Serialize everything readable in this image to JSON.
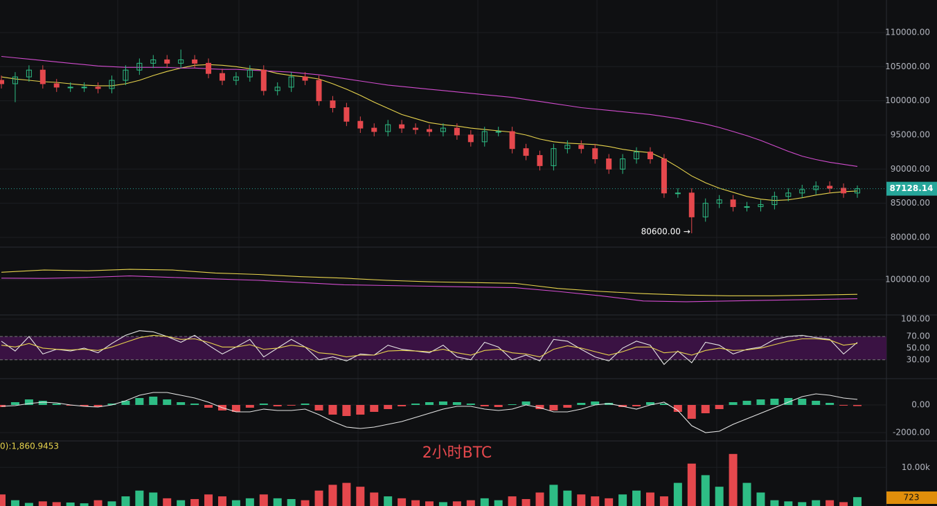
{
  "chart_data": [
    {
      "type": "candlestick",
      "up_color": "#2ebd85",
      "down_color": "#e5484d",
      "ylim": [
        78780,
        114760
      ],
      "yticks": [
        {
          "value": 80000,
          "label": "80000.00"
        },
        {
          "value": 85000,
          "label": "85000.00"
        },
        {
          "value": 90000,
          "label": "90000.00"
        },
        {
          "value": 95000,
          "label": "95000.00"
        },
        {
          "value": 100000,
          "label": "100000.00"
        },
        {
          "value": 105000,
          "label": "105000.00"
        },
        {
          "value": 110000,
          "label": "110000.00"
        }
      ],
      "open": [
        103000,
        102500,
        103500,
        104500,
        102500,
        102000,
        102000,
        102000,
        101800,
        103000,
        104500,
        105500,
        106000,
        105500,
        106000,
        105500,
        104000,
        103000,
        103500,
        104500,
        101500,
        102000,
        103500,
        103000,
        100000,
        99000,
        97000,
        96000,
        95500,
        96500,
        96000,
        95800,
        95500,
        96000,
        95000,
        94000,
        95500,
        95500,
        93000,
        92000,
        90500,
        93000,
        93500,
        93000,
        91500,
        90000,
        91500,
        92500,
        91500,
        86500,
        86500,
        83000,
        85000,
        85500,
        84500,
        84500,
        84800,
        86000,
        86500,
        87000,
        87500,
        87200,
        86500
      ],
      "high": [
        103700,
        104200,
        105200,
        105200,
        103200,
        102700,
        102700,
        102700,
        103700,
        105200,
        106200,
        106700,
        106700,
        107500,
        106700,
        106200,
        104700,
        104200,
        105200,
        105200,
        102700,
        104200,
        104200,
        103700,
        100700,
        99700,
        97700,
        96700,
        97200,
        97200,
        96700,
        96500,
        96700,
        96700,
        95700,
        96200,
        96200,
        96200,
        93700,
        92700,
        93700,
        94200,
        94200,
        93700,
        92200,
        92200,
        93200,
        93200,
        92200,
        87200,
        87200,
        85700,
        86200,
        86200,
        85200,
        85500,
        86700,
        87200,
        87700,
        88200,
        88200,
        87900,
        87600
      ],
      "low": [
        101800,
        99800,
        102800,
        101800,
        101300,
        101300,
        101300,
        101100,
        101100,
        102300,
        103800,
        104800,
        104800,
        104800,
        104800,
        103300,
        102300,
        102300,
        102800,
        100800,
        100800,
        101300,
        102300,
        99300,
        98300,
        96300,
        95300,
        94800,
        94800,
        95300,
        95100,
        94800,
        94800,
        94300,
        93300,
        93300,
        94800,
        92300,
        91300,
        89800,
        89800,
        92300,
        92300,
        90800,
        89300,
        89300,
        90800,
        90800,
        85800,
        85800,
        80600,
        82300,
        84300,
        83800,
        83800,
        83800,
        84100,
        85300,
        85800,
        86300,
        86500,
        85800,
        85800
      ],
      "close": [
        102500,
        103500,
        104500,
        102500,
        102000,
        102000,
        102000,
        101800,
        103000,
        104500,
        105500,
        106000,
        105500,
        106000,
        105500,
        104000,
        103000,
        103500,
        104500,
        101500,
        102000,
        103500,
        103000,
        100000,
        99000,
        97000,
        96000,
        95500,
        96500,
        96000,
        95800,
        95500,
        96000,
        95000,
        94000,
        95500,
        95500,
        93000,
        92000,
        90500,
        93000,
        93500,
        93000,
        91500,
        90000,
        91500,
        92500,
        91500,
        86500,
        86500,
        83000,
        85000,
        85500,
        84500,
        84500,
        84800,
        86000,
        86500,
        87000,
        87500,
        87200,
        86500,
        87128
      ],
      "series": [
        {
          "color": "#e8d44d",
          "values": [
            103500,
            103200,
            103000,
            102800,
            102700,
            102500,
            102300,
            102200,
            102200,
            102500,
            103000,
            103700,
            104300,
            104800,
            105200,
            105300,
            105200,
            105000,
            104700,
            104500,
            104000,
            103700,
            103500,
            103200,
            102500,
            101700,
            100800,
            99800,
            98900,
            98000,
            97400,
            96800,
            96500,
            96300,
            96000,
            95800,
            95600,
            95400,
            95000,
            94400,
            94000,
            93800,
            93700,
            93600,
            93300,
            92900,
            92600,
            92400,
            91500,
            90300,
            89000,
            88000,
            87200,
            86600,
            86000,
            85600,
            85400,
            85500,
            85800,
            86200,
            86500,
            86700,
            86800
          ]
        },
        {
          "color": "#d24ccf",
          "values": [
            106500,
            106300,
            106100,
            105900,
            105700,
            105500,
            105300,
            105100,
            105000,
            104900,
            104900,
            104900,
            104900,
            104800,
            104800,
            104700,
            104600,
            104600,
            104500,
            104400,
            104300,
            104200,
            104000,
            103800,
            103500,
            103200,
            102900,
            102600,
            102300,
            102100,
            101900,
            101700,
            101500,
            101300,
            101100,
            100900,
            100700,
            100500,
            100200,
            99900,
            99600,
            99300,
            99000,
            98800,
            98600,
            98400,
            98200,
            98000,
            97700,
            97400,
            97000,
            96600,
            96100,
            95500,
            94900,
            94200,
            93400,
            92600,
            91900,
            91400,
            91000,
            90700,
            90400
          ]
        }
      ],
      "current_price": 87128.14,
      "current_color": "#26a69a",
      "low_annotation": "80600.00 →"
    },
    {
      "type": "line",
      "ylim": [
        76000,
        121600
      ],
      "yticks": [
        {
          "value": 100000,
          "label": "100000.00"
        }
      ],
      "series": [
        {
          "color": "#e8d44d",
          "values": [
            105000,
            106500,
            106000,
            107000,
            106500,
            104500,
            103500,
            102000,
            101000,
            99500,
            98500,
            98000,
            97500,
            94000,
            92000,
            90500,
            89500,
            89000,
            89000,
            89500,
            90000
          ]
        },
        {
          "color": "#d24ccf",
          "values": [
            101000,
            100800,
            101500,
            102500,
            101500,
            100500,
            99500,
            98000,
            96500,
            96000,
            95500,
            95000,
            94500,
            92000,
            89000,
            85500,
            85000,
            85500,
            86000,
            86500,
            87000
          ]
        }
      ]
    },
    {
      "type": "line",
      "ylim": [
        0,
        107
      ],
      "yticks": [
        {
          "value": 30,
          "label": "30.00"
        },
        {
          "value": 50,
          "label": "50.00"
        },
        {
          "value": 70,
          "label": "70.00"
        },
        {
          "value": 100,
          "label": "100.00"
        }
      ],
      "band": [
        30,
        70
      ],
      "band_color": "#3a1243",
      "series": [
        {
          "color": "#e6e6e6",
          "values": [
            62,
            45,
            70,
            40,
            48,
            45,
            50,
            42,
            58,
            72,
            80,
            78,
            70,
            60,
            72,
            55,
            40,
            52,
            65,
            35,
            50,
            65,
            52,
            30,
            35,
            28,
            40,
            38,
            55,
            48,
            45,
            42,
            55,
            35,
            30,
            60,
            52,
            30,
            38,
            28,
            65,
            62,
            48,
            35,
            28,
            50,
            62,
            55,
            22,
            45,
            25,
            60,
            55,
            40,
            48,
            52,
            65,
            70,
            72,
            68,
            65,
            40,
            60
          ]
        },
        {
          "color": "#e8d44d",
          "values": [
            55,
            52,
            58,
            50,
            48,
            47,
            48,
            46,
            52,
            60,
            68,
            72,
            70,
            65,
            66,
            60,
            52,
            52,
            56,
            48,
            50,
            55,
            52,
            42,
            40,
            35,
            38,
            38,
            45,
            46,
            45,
            44,
            48,
            42,
            38,
            46,
            48,
            42,
            40,
            35,
            48,
            54,
            50,
            44,
            38,
            44,
            52,
            52,
            42,
            44,
            38,
            46,
            50,
            46,
            47,
            50,
            56,
            62,
            66,
            66,
            64,
            55,
            58
          ]
        }
      ]
    },
    {
      "type": "bar",
      "ylim": [
        -2550,
        1850
      ],
      "up_color": "#2ebd85",
      "down_color": "#e5484d",
      "yticks": [
        {
          "value": -2000,
          "label": "-2000.00"
        },
        {
          "value": 0,
          "label": "0.00"
        }
      ],
      "values": [
        -150,
        200,
        400,
        300,
        100,
        -50,
        -100,
        -150,
        100,
        300,
        500,
        600,
        400,
        200,
        100,
        -200,
        -400,
        -500,
        -200,
        100,
        -100,
        -50,
        100,
        -400,
        -700,
        -800,
        -700,
        -500,
        -300,
        -100,
        100,
        200,
        250,
        200,
        100,
        -100,
        -150,
        50,
        250,
        -300,
        -400,
        -200,
        150,
        250,
        150,
        -150,
        -100,
        200,
        100,
        -500,
        -1000,
        -600,
        -300,
        200,
        300,
        400,
        450,
        500,
        450,
        300,
        150,
        -50,
        -80
      ],
      "series": [
        {
          "color": "#e6e6e6",
          "values": [
            -100,
            -50,
            100,
            200,
            150,
            0,
            -100,
            -150,
            0,
            300,
            700,
            900,
            900,
            700,
            500,
            200,
            -200,
            -500,
            -500,
            -300,
            -400,
            -400,
            -300,
            -700,
            -1200,
            -1600,
            -1700,
            -1600,
            -1400,
            -1200,
            -900,
            -600,
            -300,
            -100,
            -100,
            -300,
            -400,
            -300,
            0,
            -200,
            -500,
            -500,
            -300,
            0,
            100,
            -100,
            -300,
            0,
            200,
            -400,
            -1500,
            -2000,
            -1900,
            -1400,
            -1000,
            -600,
            -200,
            200,
            600,
            800,
            700,
            500,
            400
          ]
        }
      ]
    },
    {
      "type": "volume",
      "ylim": [
        0,
        16700
      ],
      "up_color": "#2ebd85",
      "down_color": "#e5484d",
      "yticks": [
        {
          "value": 10000,
          "label": "10.00k"
        }
      ],
      "values": [
        3000,
        1500,
        800,
        1200,
        1000,
        900,
        700,
        1500,
        1200,
        2500,
        4000,
        3500,
        2000,
        1500,
        1800,
        3000,
        2500,
        1500,
        2000,
        3000,
        2000,
        1800,
        1500,
        4000,
        5500,
        6000,
        5000,
        3500,
        2500,
        2000,
        1500,
        1200,
        1000,
        1200,
        1500,
        2000,
        1500,
        2500,
        1800,
        3500,
        5500,
        4000,
        3000,
        2500,
        2000,
        3000,
        4000,
        3500,
        2500,
        6000,
        11000,
        8000,
        5000,
        13500,
        6000,
        3500,
        1500,
        1200,
        1000,
        1500,
        1500,
        1000,
        2300
      ],
      "legend_text": "0):1,860.9453",
      "watermark": "2小时BTC",
      "current_value": 723,
      "current_color": "#e08e0b"
    }
  ]
}
